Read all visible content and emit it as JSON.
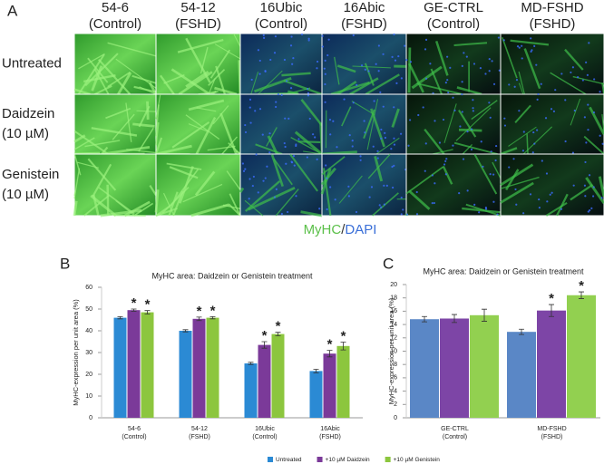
{
  "panel_a": {
    "letter": "A",
    "columns": [
      [
        "54-6",
        "(Control)"
      ],
      [
        "54-12",
        "(FSHD)"
      ],
      [
        "16Ubic",
        "(Control)"
      ],
      [
        "16Abic",
        "(FSHD)"
      ],
      [
        "GE-CTRL",
        "(Control)"
      ],
      [
        "MD-FSHD",
        "(FSHD)"
      ]
    ],
    "rows": [
      [
        "Untreated"
      ],
      [
        "Daidzein",
        "(10 µM)"
      ],
      [
        "Genistein",
        "(10 µM)"
      ]
    ],
    "caption": [
      "MyHC",
      "/",
      "DAPI"
    ]
  },
  "legend_labels": [
    "Untreated",
    "+10 µM Daidzein",
    "+10 µM Genistein"
  ],
  "chart_data": [
    {
      "type": "bar",
      "letter": "B",
      "title": "MyHC area: Daidzein or Genistein treatment",
      "y_label": "MyHC-expression per unit area (%)",
      "categories": [
        [
          "54-6",
          "(Control)"
        ],
        [
          "54-12",
          "(FSHD)"
        ],
        [
          "16Ubic",
          "(Control)"
        ],
        [
          "16Abic",
          "(FSHD)"
        ]
      ],
      "ylim": [
        0,
        60
      ],
      "yticks": [
        0,
        10,
        20,
        30,
        40,
        50,
        60
      ],
      "legend": "bottom",
      "series": [
        {
          "name": "Untreated",
          "color": "#2b8ad4",
          "values": [
            46,
            40,
            25,
            21.5
          ],
          "errors": [
            0.5,
            0.5,
            0.5,
            0.8
          ]
        },
        {
          "name": "+10 µM Daidzein",
          "color": "#7b3a99",
          "values": [
            49.5,
            45.5,
            33.5,
            29.5
          ],
          "errors": [
            0.5,
            0.8,
            1.5,
            1.5
          ],
          "significance": [
            "*",
            "*",
            "*",
            "*"
          ]
        },
        {
          "name": "+10 µM Genistein",
          "color": "#8cc63e",
          "values": [
            48.5,
            46,
            38.5,
            33
          ],
          "errors": [
            0.8,
            0.5,
            0.8,
            1.8
          ],
          "significance": [
            "*",
            "*",
            "*",
            "*"
          ]
        }
      ]
    },
    {
      "type": "bar",
      "letter": "C",
      "title": "MyHC area: Daidzein or Genistein treatment",
      "y_label": "MyHC-expression per unit area (%)",
      "categories": [
        [
          "GE-CTRL",
          "(Control)"
        ],
        [
          "MD-FSHD",
          "(FSHD)"
        ]
      ],
      "ylim": [
        0,
        20
      ],
      "yticks": [
        0,
        2,
        4,
        6,
        8,
        10,
        12,
        14,
        16,
        18,
        20
      ],
      "series": [
        {
          "color": "#5a87c6",
          "values": [
            14.8,
            12.9
          ],
          "errors": [
            0.4,
            0.4
          ]
        },
        {
          "color": "#7d45a6",
          "values": [
            14.9,
            16.1
          ],
          "errors": [
            0.6,
            0.9
          ],
          "significance": [
            null,
            "*"
          ]
        },
        {
          "color": "#92d050",
          "values": [
            15.4,
            18.4
          ],
          "errors": [
            0.9,
            0.5
          ],
          "significance": [
            null,
            "*"
          ]
        }
      ]
    }
  ]
}
